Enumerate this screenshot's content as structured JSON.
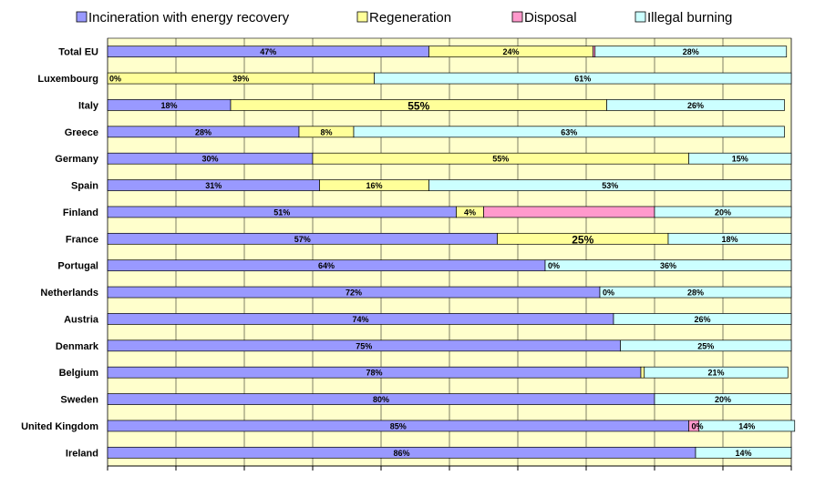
{
  "chart_data": {
    "type": "bar",
    "orientation": "horizontal",
    "stacked": true,
    "title": "",
    "xlabel": "",
    "ylabel": "",
    "xlim": [
      0,
      100
    ],
    "grid": true,
    "legend_position": "top",
    "plot_background": "#ffffcc",
    "categories": [
      "Total EU",
      "Luxembourg",
      "Italy",
      "Greece",
      "Germany",
      "Spain",
      "Finland",
      "France",
      "Portugal",
      "Netherlands",
      "Austria",
      "Denmark",
      "Belgium",
      "Sweden",
      "United Kingdom",
      "Ireland"
    ],
    "series": [
      {
        "name": "Incineration with energy recovery",
        "color": "#9999ff",
        "values": [
          47,
          0,
          18,
          28,
          30,
          31,
          51,
          57,
          64,
          72,
          74,
          75,
          78,
          80,
          85,
          86
        ],
        "labels": [
          "47%",
          "",
          "18%",
          "28%",
          "30%",
          "31%",
          "51%",
          "57%",
          "64%",
          "72%",
          "74%",
          "75%",
          "78%",
          "80%",
          "85%",
          "86%"
        ]
      },
      {
        "name": "Regeneration",
        "color": "#ffff99",
        "values": [
          24,
          39,
          55,
          8,
          55,
          16,
          4,
          25,
          0,
          0,
          0,
          0,
          0.5,
          0,
          0,
          0
        ],
        "labels": [
          "24%",
          "39%",
          "55%",
          "8%",
          "55%",
          "16%",
          "4%",
          "25%",
          "",
          "",
          "",
          "",
          "",
          "",
          "",
          ""
        ]
      },
      {
        "name": "Disposal",
        "color": "#ff99cc",
        "values": [
          0.3,
          0,
          0,
          0,
          0,
          0,
          25,
          0,
          0,
          0,
          0,
          0,
          0,
          0,
          1.5,
          0
        ],
        "labels": [
          "",
          "",
          "",
          "",
          "",
          "",
          "",
          "",
          "",
          "",
          "",
          "",
          "",
          "",
          "",
          ""
        ]
      },
      {
        "name": "Illegal burning",
        "color": "#ccffff",
        "values": [
          28,
          61,
          26,
          63,
          15,
          53,
          20,
          18,
          36,
          28,
          26,
          25,
          21,
          20,
          14,
          14
        ],
        "labels": [
          "28%",
          "61%",
          "26%",
          "63%",
          "15%",
          "53%",
          "20%",
          "18%",
          "36%",
          "28%",
          "26%",
          "25%",
          "21%",
          "20%",
          "14%",
          "14%"
        ]
      }
    ],
    "extra_labels": [
      {
        "category": "Luxembourg",
        "text": "0%",
        "anchor": "start"
      },
      {
        "category": "Portugal",
        "text": "0%",
        "anchor": "end-of-series-1"
      },
      {
        "category": "Netherlands",
        "text": "0%",
        "anchor": "end-of-series-1"
      },
      {
        "category": "United Kingdom",
        "text": "0%",
        "anchor": "end-of-series-1"
      }
    ],
    "emphasized_labels": [
      {
        "category": "Italy",
        "series": "Regeneration"
      },
      {
        "category": "France",
        "series": "Regeneration"
      }
    ]
  }
}
